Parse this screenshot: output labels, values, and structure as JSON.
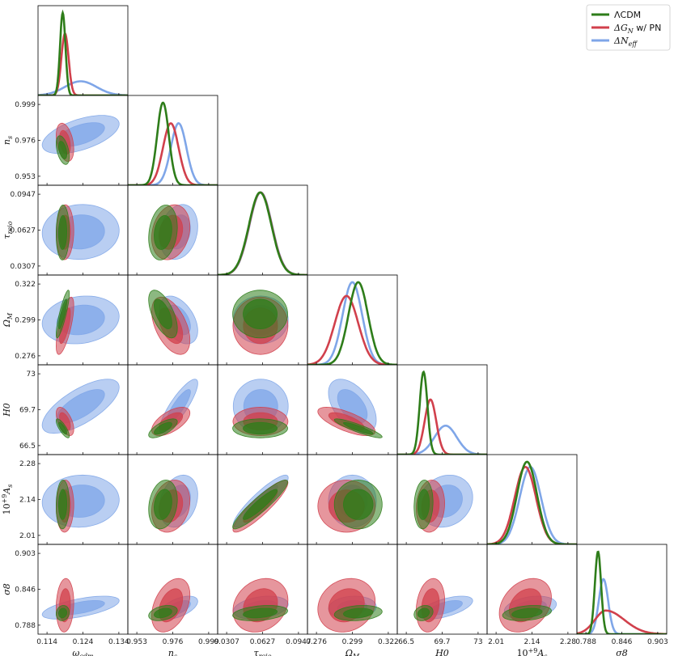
{
  "chart_data": {
    "type": "corner",
    "title": "",
    "colors": {
      "lcdm": "#2e7d1a",
      "dgn": "#d1404c",
      "dneff": "#7fa6e8",
      "axis": "#000000"
    },
    "legend": {
      "position": "top-right",
      "entries": [
        {
          "key": "lcdm",
          "label_sym": "Λ",
          "label_rest": "CDM"
        },
        {
          "key": "dgn",
          "label_sym": "ΔG",
          "label_sub": "N",
          "label_rest": " w/ PN"
        },
        {
          "key": "dneff",
          "label_sym": "ΔN",
          "label_sub": "eff",
          "label_rest": ""
        }
      ]
    },
    "parameters": [
      {
        "key": "omega_cdm",
        "label": "ω",
        "sub": "cdm",
        "range": [
          0.114,
          0.134
        ],
        "ticks": [
          "0.114",
          "0.124",
          "0.134"
        ]
      },
      {
        "key": "n_s",
        "label": "n",
        "sub": "s",
        "range": [
          0.953,
          0.999
        ],
        "ticks": [
          "0.953",
          "0.976",
          "0.999"
        ]
      },
      {
        "key": "tau_reio",
        "label": "τ",
        "sub": "reio",
        "range": [
          0.0307,
          0.0947
        ],
        "ticks": [
          "0.0307",
          "0.0627",
          "0.0947"
        ]
      },
      {
        "key": "Omega_M",
        "label": "Ω",
        "sub": "M",
        "range": [
          0.276,
          0.322
        ],
        "ticks": [
          "0.276",
          "0.299",
          "0.322"
        ]
      },
      {
        "key": "H0",
        "label": "H0",
        "sub": "",
        "range": [
          66.5,
          73
        ],
        "ticks": [
          "66.5",
          "69.7",
          "73"
        ]
      },
      {
        "key": "As",
        "label": "10",
        "sup": "+9",
        "post": "A",
        "sub": "s",
        "range": [
          2.01,
          2.28
        ],
        "ticks": [
          "2.01",
          "2.14",
          "2.28"
        ]
      },
      {
        "key": "sigma8",
        "label": "σ8",
        "sub": "",
        "range": [
          0.788,
          0.903
        ],
        "ticks": [
          "0.788",
          "0.846",
          "0.903"
        ]
      }
    ],
    "models": [
      {
        "key": "lcdm",
        "mean": [
          0.1195,
          0.971,
          0.061,
          0.302,
          68.4,
          2.13,
          0.815
        ],
        "std": [
          0.0006,
          0.003,
          0.008,
          0.005,
          0.28,
          0.03,
          0.004
        ],
        "corr": [
          [
            0,
            1,
            -0.45
          ],
          [
            0,
            3,
            0.85
          ],
          [
            0,
            4,
            -0.8
          ],
          [
            0,
            6,
            0.1
          ],
          [
            1,
            3,
            -0.6
          ],
          [
            1,
            4,
            0.7
          ],
          [
            1,
            5,
            0.2
          ],
          [
            1,
            6,
            0.35
          ],
          [
            2,
            5,
            0.92
          ],
          [
            2,
            6,
            0.3
          ],
          [
            3,
            4,
            -0.9
          ],
          [
            3,
            6,
            0.2
          ],
          [
            4,
            6,
            0.2
          ],
          [
            5,
            6,
            0.3
          ],
          [
            0,
            2,
            0.05
          ],
          [
            0,
            5,
            0.05
          ],
          [
            1,
            2,
            0.2
          ],
          [
            2,
            3,
            0.0
          ],
          [
            2,
            4,
            0.0
          ],
          [
            3,
            5,
            0.0
          ],
          [
            4,
            5,
            0.1
          ]
        ]
      },
      {
        "key": "dgn",
        "mean": [
          0.12,
          0.975,
          0.0612,
          0.296,
          68.9,
          2.125,
          0.825
        ],
        "std": [
          0.0008,
          0.004,
          0.008,
          0.006,
          0.42,
          0.032,
          0.014
        ],
        "corr": [
          [
            0,
            1,
            -0.35
          ],
          [
            0,
            3,
            0.7
          ],
          [
            0,
            4,
            -0.55
          ],
          [
            0,
            6,
            0.1
          ],
          [
            1,
            3,
            -0.5
          ],
          [
            1,
            4,
            0.6
          ],
          [
            1,
            5,
            0.2
          ],
          [
            1,
            6,
            0.4
          ],
          [
            2,
            5,
            0.9
          ],
          [
            2,
            6,
            0.2
          ],
          [
            3,
            4,
            -0.7
          ],
          [
            3,
            6,
            0.15
          ],
          [
            4,
            6,
            0.2
          ],
          [
            5,
            6,
            0.3
          ],
          [
            0,
            2,
            0.05
          ],
          [
            0,
            5,
            0.05
          ],
          [
            1,
            2,
            0.2
          ],
          [
            2,
            3,
            0.0
          ],
          [
            2,
            4,
            0.0
          ],
          [
            3,
            5,
            0.0
          ],
          [
            4,
            5,
            0.1
          ]
        ]
      },
      {
        "key": "dneff",
        "mean": [
          0.1235,
          0.979,
          0.0614,
          0.299,
          70.0,
          2.14,
          0.822
        ],
        "std": [
          0.0035,
          0.004,
          0.008,
          0.005,
          0.8,
          0.032,
          0.006
        ],
        "corr": [
          [
            0,
            1,
            0.55
          ],
          [
            0,
            3,
            0.15
          ],
          [
            0,
            4,
            0.7
          ],
          [
            0,
            6,
            0.6
          ],
          [
            1,
            3,
            -0.45
          ],
          [
            1,
            4,
            0.85
          ],
          [
            1,
            5,
            0.25
          ],
          [
            1,
            6,
            0.55
          ],
          [
            2,
            5,
            0.9
          ],
          [
            2,
            6,
            0.3
          ],
          [
            3,
            4,
            -0.5
          ],
          [
            3,
            6,
            0.1
          ],
          [
            4,
            6,
            0.6
          ],
          [
            5,
            6,
            0.3
          ],
          [
            0,
            2,
            0.05
          ],
          [
            0,
            5,
            0.05
          ],
          [
            1,
            2,
            0.2
          ],
          [
            2,
            3,
            0.0
          ],
          [
            2,
            4,
            0.0
          ],
          [
            3,
            5,
            0.0
          ],
          [
            4,
            5,
            0.15
          ]
        ]
      }
    ]
  }
}
